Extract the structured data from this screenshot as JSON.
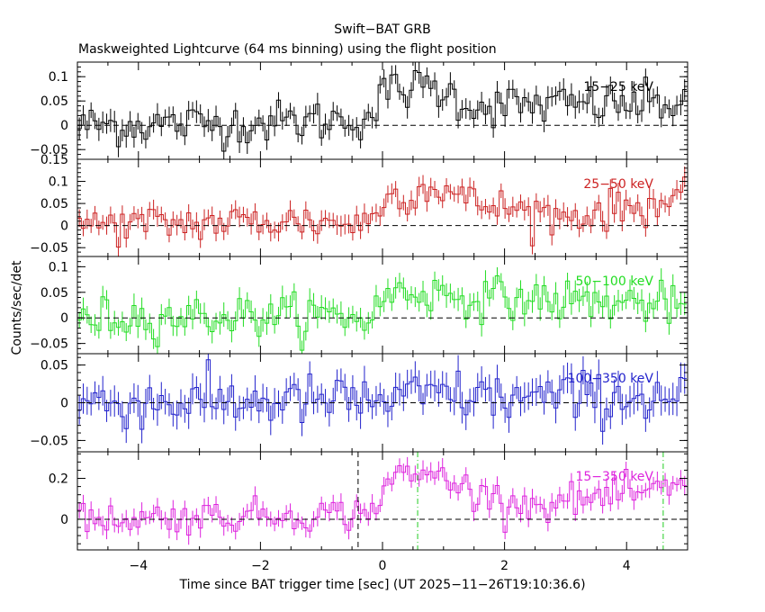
{
  "title": "Swift−BAT GRB",
  "subtitle": "Maskweighted Lightcurve (64 ms binning) using the flight position",
  "xlabel": "Time since BAT trigger time [sec] (UT 2025−11−26T19:10:36.6)",
  "ylabel": "Counts/sec/det",
  "chart_data": {
    "type": "line",
    "title": "Swift−BAT GRB",
    "xlabel": "Time since BAT trigger time [sec] (UT 2025−11−26T19:10:36.6)",
    "ylabel": "Counts/sec/det",
    "xlim": [
      -5,
      5
    ],
    "x_ticks": [
      -4,
      -2,
      0,
      2,
      4
    ],
    "x_tick_labels": [
      "−4",
      "−2",
      "0",
      "2",
      "4"
    ],
    "binning_sec": 0.064,
    "grid": false,
    "legend": "none (band labels inside each panel, top-right)",
    "panels": [
      {
        "name": "15−25 keV",
        "color": "#000000",
        "ylim": [
          -0.07,
          0.13
        ],
        "y_ticks": [
          -0.05,
          0,
          0.05,
          0.1
        ],
        "y_tick_labels": [
          "−0.05",
          "0",
          "0.05",
          "0.1"
        ],
        "profile": [
          [
            -5,
            0.0
          ],
          [
            -2.2,
            0.005
          ],
          [
            -1.0,
            0.01
          ],
          [
            -0.2,
            0.015
          ],
          [
            0.05,
            0.07
          ],
          [
            0.8,
            0.08
          ],
          [
            1.5,
            0.04
          ],
          [
            5,
            0.045
          ]
        ],
        "noise": 0.022,
        "err": 0.02,
        "baseline": 0
      },
      {
        "name": "25−50 keV",
        "color": "#cc2222",
        "ylim": [
          -0.07,
          0.15
        ],
        "y_ticks": [
          -0.05,
          0,
          0.05,
          0.1,
          0.15
        ],
        "y_tick_labels": [
          "−0.05",
          "0",
          "0.05",
          "0.1",
          "0.15"
        ],
        "profile": [
          [
            -5,
            0.0
          ],
          [
            -1.5,
            0.01
          ],
          [
            -0.2,
            0.005
          ],
          [
            0.0,
            0.06
          ],
          [
            0.9,
            0.09
          ],
          [
            1.5,
            0.05
          ],
          [
            3.0,
            0.02
          ],
          [
            5,
            0.06
          ]
        ],
        "noise": 0.022,
        "err": 0.02,
        "baseline": 0
      },
      {
        "name": "50−100 keV",
        "color": "#22dd22",
        "ylim": [
          -0.07,
          0.12
        ],
        "y_ticks": [
          -0.05,
          0,
          0.05,
          0.1
        ],
        "y_tick_labels": [
          "−0.05",
          "0",
          "0.05",
          "0.1"
        ],
        "profile": [
          [
            -5,
            0.0
          ],
          [
            -1.0,
            0.005
          ],
          [
            -0.2,
            0.0
          ],
          [
            0.1,
            0.05
          ],
          [
            0.7,
            0.05
          ],
          [
            1.5,
            0.04
          ],
          [
            5,
            0.025
          ]
        ],
        "noise": 0.02,
        "err": 0.02,
        "baseline": 0
      },
      {
        "name": "100−350 keV",
        "color": "#2222cc",
        "ylim": [
          -0.065,
          0.065
        ],
        "y_ticks": [
          -0.05,
          0,
          0.05
        ],
        "y_tick_labels": [
          "−0.05",
          "0",
          "0.05"
        ],
        "profile": [
          [
            -5,
            0.0
          ],
          [
            0.3,
            0.003
          ],
          [
            0.8,
            0.012
          ],
          [
            2.0,
            0.006
          ],
          [
            5,
            0.008
          ]
        ],
        "noise": 0.017,
        "err": 0.018,
        "baseline": 0
      },
      {
        "name": "15−350 keV",
        "color": "#dd22dd",
        "ylim": [
          -0.15,
          0.33
        ],
        "y_ticks": [
          0,
          0.2
        ],
        "y_tick_labels": [
          "0",
          "0.2"
        ],
        "profile": [
          [
            -5,
            0.0
          ],
          [
            -2.0,
            0.02
          ],
          [
            -0.2,
            0.03
          ],
          [
            0.1,
            0.2
          ],
          [
            0.9,
            0.22
          ],
          [
            1.6,
            0.12
          ],
          [
            2.5,
            0.07
          ],
          [
            5,
            0.15
          ]
        ],
        "noise": 0.04,
        "err": 0.04,
        "baseline": 0,
        "markers": [
          {
            "x": -0.4,
            "style": "black-dashed"
          },
          {
            "x": 0.576,
            "style": "green-dash-dot"
          },
          {
            "x": 4.6,
            "style": "green-dash-dot"
          }
        ]
      }
    ]
  }
}
